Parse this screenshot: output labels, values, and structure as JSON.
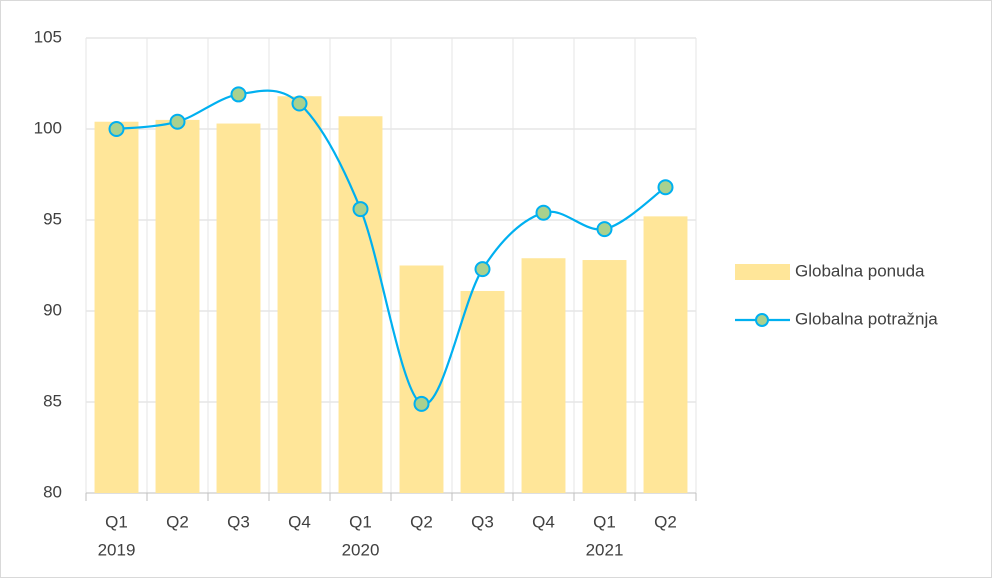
{
  "chart_data": {
    "type": "bar",
    "categories": [
      "Q1",
      "Q2",
      "Q3",
      "Q4",
      "Q1",
      "Q2",
      "Q3",
      "Q4",
      "Q1",
      "Q2"
    ],
    "groups": [
      "2019",
      null,
      null,
      null,
      "2020",
      null,
      null,
      null,
      "2021",
      null
    ],
    "series": [
      {
        "name": "Globalna ponuda",
        "type": "bar",
        "color": "#ffe699",
        "values": [
          100.4,
          100.5,
          100.3,
          101.8,
          100.7,
          92.5,
          91.1,
          92.9,
          92.8,
          95.2
        ]
      },
      {
        "name": "Globalna potražnja",
        "type": "line",
        "color": "#00b0f0",
        "marker_color": "#a9d18e",
        "smooth": true,
        "values": [
          100.0,
          100.4,
          101.9,
          101.4,
          95.6,
          84.9,
          92.3,
          95.4,
          94.5,
          96.8
        ]
      }
    ],
    "ylim": [
      80,
      105
    ],
    "yticks": [
      80,
      85,
      90,
      95,
      100,
      105
    ],
    "grid": true,
    "legend": "right"
  }
}
